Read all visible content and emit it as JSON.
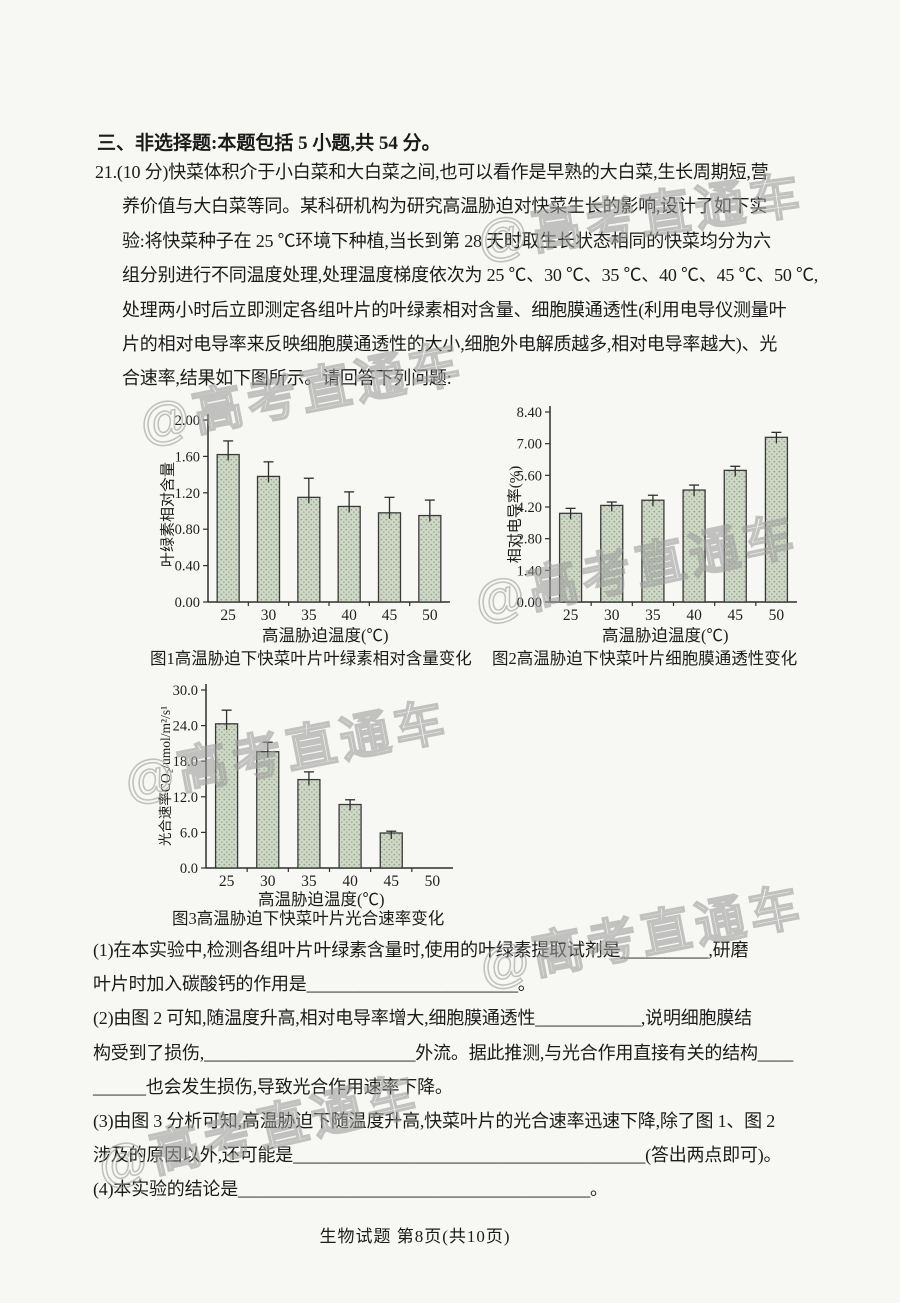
{
  "page": {
    "section_heading": "三、非选择题:本题包括 5 小题,共 54 分。",
    "footer": "生物试题  第8页(共10页)",
    "watermark_text": "@高考直通车"
  },
  "question21": {
    "lines": [
      "21.(10 分)快菜体积介于小白菜和大白菜之间,也可以看作是早熟的大白菜,生长周期短,营",
      "养价值与大白菜等同。某科研机构为研究高温胁迫对快菜生长的影响,设计了如下实",
      "验:将快菜种子在 25 ℃环境下种植,当长到第 28 天时取生长状态相同的快菜均分为六",
      "组分别进行不同温度处理,处理温度梯度依次为 25 ℃、30 ℃、35 ℃、40 ℃、45 ℃、50 ℃,",
      "处理两小时后立即测定各组叶片的叶绿素相对含量、细胞膜通透性(利用电导仪测量叶",
      "片的相对电导率来反映细胞膜通透性的大小,细胞外电解质越多,相对电导率越大)、光",
      "合速率,结果如下图所示。请回答下列问题:"
    ]
  },
  "subquestions": {
    "lines": [
      "(1)在本实验中,检测各组叶片叶绿素含量时,使用的叶绿素提取试剂是__________,研磨",
      "叶片时加入碳酸钙的作用是________________________。",
      "(2)由图 2 可知,随温度升高,相对电导率增大,细胞膜通透性____________,说明细胞膜结",
      "构受到了损伤,________________________外流。据此推测,与光合作用直接有关的结构____",
      "______也会发生损伤,导致光合作用速率下降。",
      "(3)由图 3 分析可知,高温胁迫下随温度升高,快菜叶片的光合速率迅速下降,除了图 1、图 2",
      "涉及的原因以外,还可能是________________________________________(答出两点即可)。",
      "(4)本实验的结论是________________________________________。"
    ]
  },
  "chart_data": [
    {
      "type": "bar",
      "title": "图1高温胁迫下快菜叶片叶绿素相对含量变化",
      "xlabel": "高温胁迫温度(℃)",
      "ylabel": "叶绿素相对含量",
      "categories": [
        "25",
        "30",
        "35",
        "40",
        "45",
        "50"
      ],
      "values": [
        1.62,
        1.38,
        1.15,
        1.05,
        0.98,
        0.95
      ],
      "errors": [
        0.15,
        0.16,
        0.21,
        0.16,
        0.17,
        0.17
      ],
      "ylim": [
        0,
        2.0
      ],
      "ytick_step": 0.4,
      "ydecimals": 2,
      "grid": false,
      "bar_fill": "#cfd8c7",
      "bar_stroke": "#3a3a3a"
    },
    {
      "type": "bar",
      "title": "图2高温胁迫下快菜叶片细胞膜通透性变化",
      "xlabel": "高温胁迫温度(℃)",
      "ylabel": "相对电导率(%)",
      "categories": [
        "25",
        "30",
        "35",
        "40",
        "45",
        "50"
      ],
      "values": [
        3.92,
        4.27,
        4.5,
        4.95,
        5.82,
        7.28
      ],
      "errors": [
        0.22,
        0.15,
        0.22,
        0.22,
        0.18,
        0.22
      ],
      "ylim": [
        0,
        8.4
      ],
      "ytick_step": 1.4,
      "ydecimals": 2,
      "grid": false,
      "bar_fill": "#cfd8c7",
      "bar_stroke": "#3a3a3a"
    },
    {
      "type": "bar",
      "title": "图3高温胁迫下快菜叶片光合速率变化",
      "xlabel": "高温胁迫温度(℃)",
      "ylabel": "光合速率CO₂/umol/m²/s¹",
      "categories": [
        "25",
        "30",
        "35",
        "40",
        "45",
        "50"
      ],
      "values": [
        24.3,
        19.6,
        14.9,
        10.7,
        5.9,
        null
      ],
      "errors": [
        2.3,
        1.6,
        1.3,
        0.8,
        0.3,
        null
      ],
      "ylim": [
        0,
        30.0
      ],
      "ytick_step": 6.0,
      "ydecimals": 1,
      "grid": false,
      "bar_fill": "#cfd8c7",
      "bar_stroke": "#3a3a3a"
    }
  ]
}
